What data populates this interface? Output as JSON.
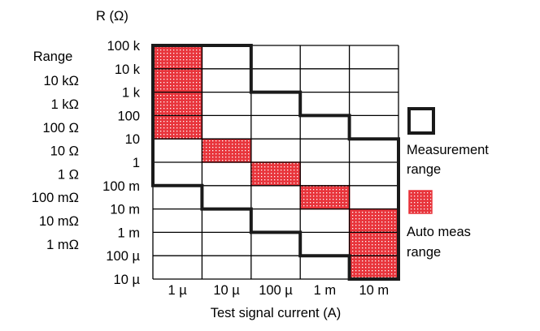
{
  "chart_data": {
    "type": "heatmap",
    "y_title": "R (Ω)",
    "x_title": "Test signal current (A)",
    "y_ticks": [
      "100 k",
      "10 k",
      "1 k",
      "100",
      "10",
      "1",
      "100 m",
      "10 m",
      "1 m",
      "100 µ",
      "10 µ"
    ],
    "x_ticks": [
      "1 µ",
      "10 µ",
      "100 µ",
      "1 m",
      "10 m"
    ],
    "range_title": "Range",
    "ranges": [
      "10 kΩ",
      "1 kΩ",
      "100 Ω",
      "10 Ω",
      "1 Ω",
      "100 mΩ",
      "10 mΩ",
      "1 mΩ"
    ],
    "measurement_range": [
      {
        "current": "1 µ",
        "r_high": "100 k",
        "r_low": "100 m"
      },
      {
        "current": "10 µ",
        "r_high": "100 k",
        "r_low": "10 m"
      },
      {
        "current": "100 µ",
        "r_high": "1 k",
        "r_low": "1 m"
      },
      {
        "current": "1 m",
        "r_high": "100",
        "r_low": "100 µ"
      },
      {
        "current": "10 m",
        "r_high": "10",
        "r_low": "10 µ"
      }
    ],
    "auto_meas_range": [
      {
        "current": "1 µ",
        "r_high": "100 k",
        "r_low": "10"
      },
      {
        "current": "10 µ",
        "r_high": "10",
        "r_low": "1"
      },
      {
        "current": "100 µ",
        "r_high": "1",
        "r_low": "100 m"
      },
      {
        "current": "1 m",
        "r_high": "100 m",
        "r_low": "10 m"
      },
      {
        "current": "10 m",
        "r_high": "10 m",
        "r_low": "10 µ"
      }
    ],
    "legend": [
      {
        "key": "measurement",
        "label_lines": [
          "Measurement",
          "range"
        ]
      },
      {
        "key": "auto",
        "label_lines": [
          "Auto meas",
          "range"
        ]
      }
    ]
  },
  "colors": {
    "grid": "#000000",
    "boundary": "#1a1a1a",
    "auto_fill": "#e8353c",
    "auto_dot": "#ffffff"
  }
}
